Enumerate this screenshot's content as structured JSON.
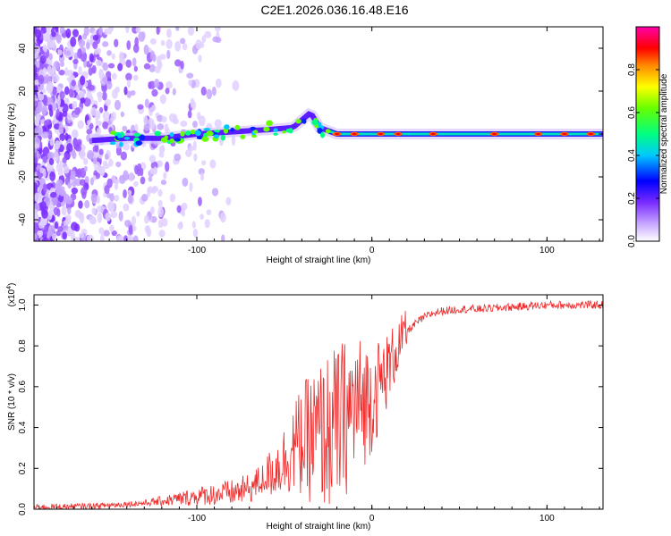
{
  "title": "C2E1.2026.036.16.48.E16",
  "colors": {
    "snr_line": "#ee2a2a",
    "spectrogram_purple": "#7a2cff",
    "colorbar": [
      "#ff00ff",
      "#ff0000",
      "#ff8800",
      "#ffff00",
      "#00ff00",
      "#00ffff",
      "#0000ff",
      "#8a2be2",
      "#ffffff"
    ]
  },
  "chart_data": [
    {
      "type": "heatmap",
      "name": "spectrogram",
      "xlabel": "Height of straight line (km)",
      "ylabel": "Frequency (Hz)",
      "xlim": [
        -193,
        132
      ],
      "ylim": [
        -50,
        50
      ],
      "xticks": [
        -100,
        0,
        100
      ],
      "xtick_labels": [
        "-100",
        "0",
        "100"
      ],
      "yticks": [
        -40,
        -20,
        0,
        20,
        40
      ],
      "ytick_labels": [
        "-40",
        "-20",
        "0",
        "20",
        "40"
      ],
      "colorbar": {
        "label": "Normalized spectral amplitude",
        "range": [
          0,
          1
        ],
        "ticks": [
          0.0,
          0.2,
          0.4,
          0.6,
          0.8
        ],
        "tick_labels": [
          "0.0",
          "0.2",
          "0.4",
          "0.6",
          "0.8"
        ]
      },
      "carrier_trace": [
        {
          "x": -160,
          "y": -3
        },
        {
          "x": -140,
          "y": -2
        },
        {
          "x": -120,
          "y": -2
        },
        {
          "x": -100,
          "y": 0
        },
        {
          "x": -80,
          "y": 1
        },
        {
          "x": -60,
          "y": 2
        },
        {
          "x": -45,
          "y": 3
        },
        {
          "x": -35,
          "y": 10
        },
        {
          "x": -30,
          "y": 3
        },
        {
          "x": -20,
          "y": 0
        },
        {
          "x": 0,
          "y": 0
        },
        {
          "x": 50,
          "y": 0
        },
        {
          "x": 100,
          "y": 0
        },
        {
          "x": 132,
          "y": 0
        }
      ]
    },
    {
      "type": "line",
      "name": "snr",
      "xlabel": "Height of straight line (km)",
      "ylabel": "SNR (10 * v/v)",
      "y_multiplier": "(x10",
      "y_multiplier_exp": "4",
      "y_multiplier_close": ")",
      "xlim": [
        -193,
        132
      ],
      "ylim": [
        0,
        1.05
      ],
      "xticks": [
        -100,
        0,
        100
      ],
      "xtick_labels": [
        "-100",
        "0",
        "100"
      ],
      "yticks": [
        0,
        0.2,
        0.4,
        0.6,
        0.8,
        1.0
      ],
      "ytick_labels": [
        "0.0",
        "0.2",
        "0.4",
        "0.6",
        "0.8",
        "1.0"
      ],
      "series": [
        {
          "name": "SNR",
          "x": [
            -193,
            -160,
            -130,
            -110,
            -95,
            -80,
            -70,
            -60,
            -55,
            -50,
            -45,
            -40,
            -35,
            -30,
            -25,
            -20,
            -15,
            -10,
            -5,
            0,
            5,
            10,
            15,
            20,
            25,
            30,
            35,
            40,
            50,
            60,
            80,
            100,
            120,
            132
          ],
          "values": [
            0.01,
            0.015,
            0.03,
            0.05,
            0.07,
            0.08,
            0.1,
            0.16,
            0.2,
            0.24,
            0.3,
            0.33,
            0.35,
            0.36,
            0.38,
            0.4,
            0.45,
            0.5,
            0.52,
            0.55,
            0.62,
            0.7,
            0.8,
            0.87,
            0.91,
            0.94,
            0.96,
            0.97,
            0.98,
            0.98,
            0.99,
            1.0,
            1.0,
            1.0
          ]
        }
      ]
    }
  ]
}
